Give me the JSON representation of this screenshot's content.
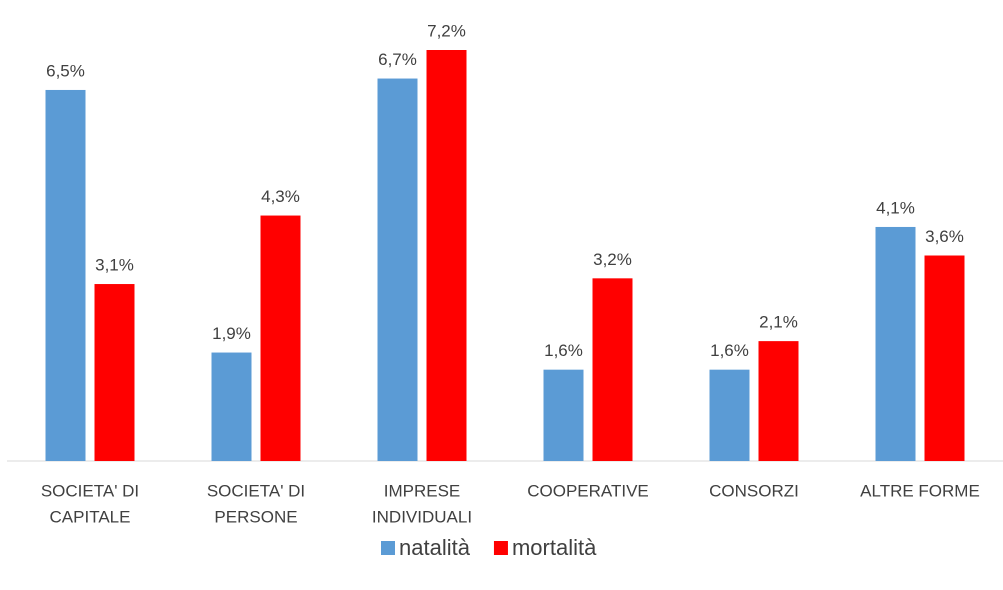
{
  "chart_data": {
    "type": "bar",
    "categories": [
      [
        "SOCIETA' DI",
        "CAPITALE"
      ],
      [
        "SOCIETA' DI",
        "PERSONE"
      ],
      [
        "IMPRESE",
        "INDIVIDUALI"
      ],
      [
        "COOPERATIVE"
      ],
      [
        "CONSORZI"
      ],
      [
        "ALTRE FORME"
      ]
    ],
    "series": [
      {
        "name": "natalità",
        "color": "#5b9bd5",
        "values": [
          6.5,
          1.9,
          6.7,
          1.6,
          1.6,
          4.1
        ],
        "value_labels": [
          "6,5%",
          "1,9%",
          "6,7%",
          "1,6%",
          "1,6%",
          "4,1%"
        ]
      },
      {
        "name": "mortalità",
        "color": "#ff0000",
        "values": [
          3.1,
          4.3,
          7.2,
          3.2,
          2.1,
          3.6
        ],
        "value_labels": [
          "3,1%",
          "4,3%",
          "7,2%",
          "3,2%",
          "2,1%",
          "3,6%"
        ]
      }
    ],
    "grid": false,
    "legend": "bottom"
  }
}
